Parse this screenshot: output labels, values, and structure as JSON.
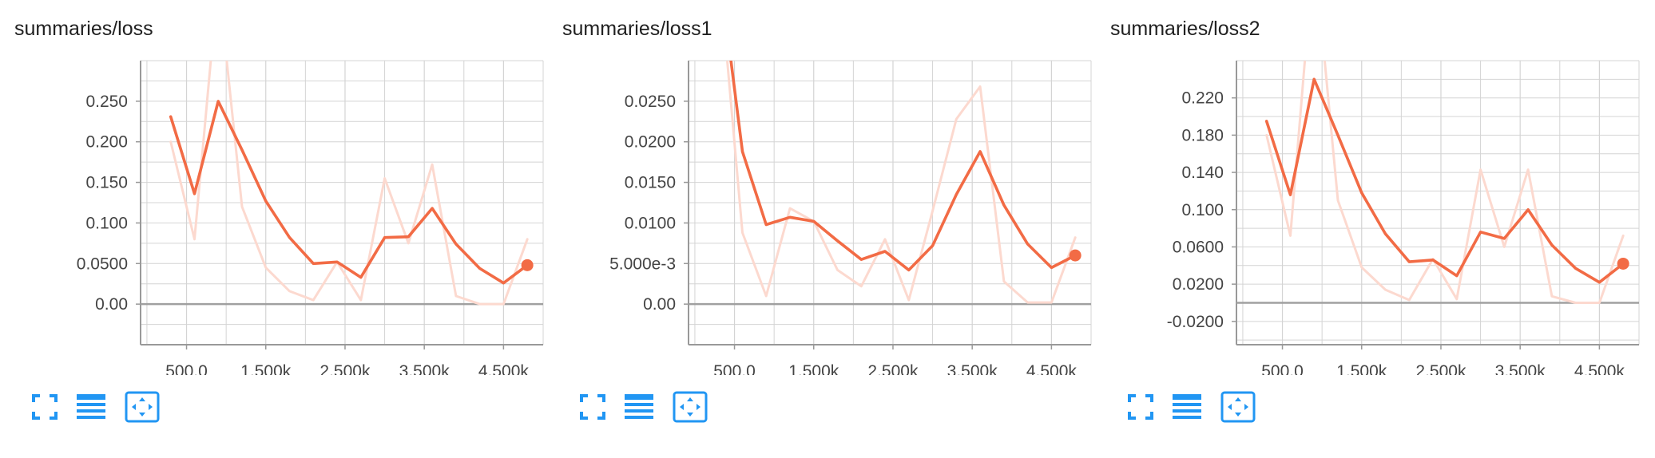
{
  "cards": [
    {
      "title": "summaries/loss",
      "chart_data": {
        "type": "line",
        "title": "summaries/loss",
        "x_tick_labels": [
          "500.0",
          "1.500k",
          "2.500k",
          "3.500k",
          "4.500k"
        ],
        "x_ticks": [
          500,
          1500,
          2500,
          3500,
          4500
        ],
        "y_tick_labels": [
          "0.250",
          "0.200",
          "0.150",
          "0.100",
          "0.0500",
          "0.00"
        ],
        "y_ticks": [
          0.25,
          0.2,
          0.15,
          0.1,
          0.05,
          0.0
        ],
        "xlim": [
          -80,
          5000
        ],
        "ylim": [
          -0.05,
          0.3
        ],
        "grid": true,
        "series": [
          {
            "style": "smoothed",
            "x": [
              300,
              600,
              900,
              1200,
              1500,
              1800,
              2100,
              2400,
              2700,
              3000,
              3300,
              3600,
              3900,
              4200,
              4500,
              4800
            ],
            "y": [
              0.231,
              0.136,
              0.25,
              0.19,
              0.127,
              0.082,
              0.05,
              0.052,
              0.033,
              0.082,
              0.083,
              0.118,
              0.074,
              0.044,
              0.026,
              0.048
            ]
          },
          {
            "style": "raw",
            "x": [
              300,
              600,
              900,
              1200,
              1500,
              1800,
              2100,
              2400,
              2700,
              3000,
              3300,
              3600,
              3900,
              4200,
              4500,
              4800
            ],
            "y": [
              0.2,
              0.08,
              0.4,
              0.12,
              0.045,
              0.016,
              0.005,
              0.052,
              0.005,
              0.155,
              0.075,
              0.172,
              0.01,
              0.0,
              0.0,
              0.08
            ]
          }
        ]
      },
      "tools": {
        "expand_icon": "fullscreen-icon",
        "data_icon": "list-icon",
        "fit_icon": "fit-domain-icon"
      }
    },
    {
      "title": "summaries/loss1",
      "chart_data": {
        "type": "line",
        "title": "summaries/loss1",
        "x_tick_labels": [
          "500.0",
          "1.500k",
          "2.500k",
          "3.500k",
          "4.500k"
        ],
        "x_ticks": [
          500,
          1500,
          2500,
          3500,
          4500
        ],
        "y_tick_labels": [
          "0.0250",
          "0.0200",
          "0.0150",
          "0.0100",
          "5.000e-3",
          "0.00"
        ],
        "y_ticks": [
          0.025,
          0.02,
          0.015,
          0.01,
          0.005,
          0.0
        ],
        "xlim": [
          -80,
          5000
        ],
        "ylim": [
          -0.005,
          0.03
        ],
        "grid": true,
        "series": [
          {
            "style": "smoothed",
            "x": [
              300,
              600,
              900,
              1200,
              1500,
              1800,
              2100,
              2400,
              2700,
              3000,
              3300,
              3600,
              3900,
              4200,
              4500,
              4800
            ],
            "y": [
              0.042,
              0.0188,
              0.0098,
              0.0107,
              0.0102,
              0.0078,
              0.0055,
              0.0065,
              0.0042,
              0.0072,
              0.0135,
              0.0188,
              0.0122,
              0.0074,
              0.0045,
              0.006
            ]
          },
          {
            "style": "raw",
            "x": [
              300,
              600,
              900,
              1200,
              1500,
              1800,
              2100,
              2400,
              2700,
              3000,
              3300,
              3600,
              3900,
              4200,
              4500,
              4800
            ],
            "y": [
              0.042,
              0.0088,
              0.001,
              0.0118,
              0.0102,
              0.0042,
              0.0022,
              0.008,
              0.0005,
              0.0115,
              0.0228,
              0.0268,
              0.0028,
              0.0002,
              0.0002,
              0.0082
            ]
          }
        ]
      },
      "tools": {
        "expand_icon": "fullscreen-icon",
        "data_icon": "list-icon",
        "fit_icon": "fit-domain-icon"
      }
    },
    {
      "title": "summaries/loss2",
      "chart_data": {
        "type": "line",
        "title": "summaries/loss2",
        "x_tick_labels": [
          "500.0",
          "1.500k",
          "2.500k",
          "3.500k",
          "4.500k"
        ],
        "x_ticks": [
          500,
          1500,
          2500,
          3500,
          4500
        ],
        "y_tick_labels": [
          "0.220",
          "0.180",
          "0.140",
          "0.100",
          "0.0600",
          "0.0200",
          "-0.0200"
        ],
        "y_ticks": [
          0.22,
          0.18,
          0.14,
          0.1,
          0.06,
          0.02,
          -0.02
        ],
        "xlim": [
          -80,
          5000
        ],
        "ylim": [
          -0.045,
          0.26
        ],
        "grid": true,
        "series": [
          {
            "style": "smoothed",
            "x": [
              300,
              600,
              900,
              1200,
              1500,
              1800,
              2100,
              2400,
              2700,
              3000,
              3300,
              3600,
              3900,
              4200,
              4500,
              4800
            ],
            "y": [
              0.195,
              0.116,
              0.24,
              0.18,
              0.118,
              0.074,
              0.044,
              0.046,
              0.029,
              0.076,
              0.069,
              0.1,
              0.062,
              0.037,
              0.022,
              0.042
            ]
          },
          {
            "style": "raw",
            "x": [
              300,
              600,
              900,
              1200,
              1500,
              1800,
              2100,
              2400,
              2700,
              3000,
              3300,
              3600,
              3900,
              4200,
              4500,
              4800
            ],
            "y": [
              0.18,
              0.072,
              0.38,
              0.11,
              0.038,
              0.014,
              0.003,
              0.047,
              0.004,
              0.143,
              0.06,
              0.143,
              0.007,
              0.0,
              0.0,
              0.072
            ]
          }
        ]
      },
      "tools": {
        "expand_icon": "fullscreen-icon",
        "data_icon": "list-icon",
        "fit_icon": "fit-domain-icon"
      }
    }
  ],
  "colors": {
    "smoothed_line": "#f26b45",
    "raw_line": "#fcd9cf",
    "grid": "#d4d4d4",
    "axis": "#999999",
    "zero_line": "#a0a0a0",
    "tool_icon": "#2196f3"
  }
}
